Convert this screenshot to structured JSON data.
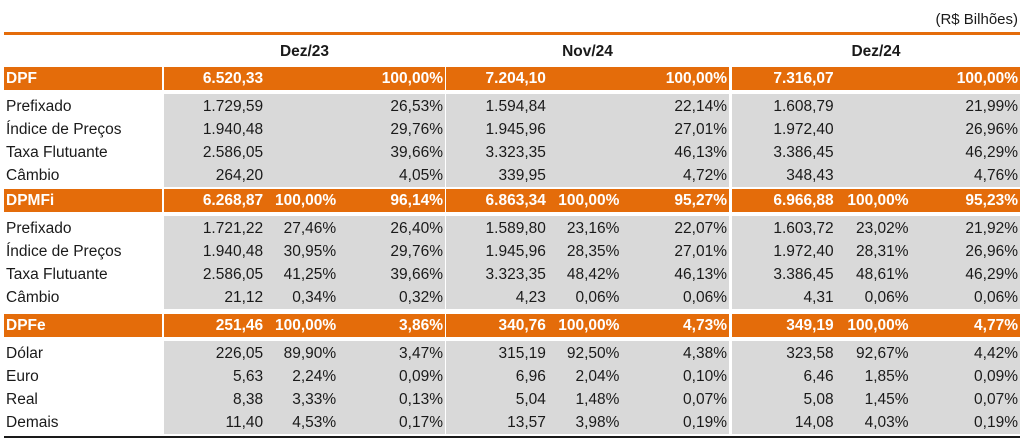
{
  "unit": "(R$ Bilhões)",
  "periods": [
    "Dez/23",
    "Nov/24",
    "Dez/24"
  ],
  "sections": [
    {
      "name": "DPF",
      "totals": [
        [
          "6.520,33",
          "",
          "100,00%"
        ],
        [
          "7.204,10",
          "",
          "100,00%"
        ],
        [
          "7.316,07",
          "",
          "100,00%"
        ]
      ],
      "rows": [
        {
          "label": "Prefixado",
          "vals": [
            [
              "1.729,59",
              "",
              "26,53%"
            ],
            [
              "1.594,84",
              "",
              "22,14%"
            ],
            [
              "1.608,79",
              "",
              "21,99%"
            ]
          ]
        },
        {
          "label": "Índice de Preços",
          "vals": [
            [
              "1.940,48",
              "",
              "29,76%"
            ],
            [
              "1.945,96",
              "",
              "27,01%"
            ],
            [
              "1.972,40",
              "",
              "26,96%"
            ]
          ]
        },
        {
          "label": "Taxa Flutuante",
          "vals": [
            [
              "2.586,05",
              "",
              "39,66%"
            ],
            [
              "3.323,35",
              "",
              "46,13%"
            ],
            [
              "3.386,45",
              "",
              "46,29%"
            ]
          ]
        },
        {
          "label": "Câmbio",
          "vals": [
            [
              "264,20",
              "",
              "4,05%"
            ],
            [
              "339,95",
              "",
              "4,72%"
            ],
            [
              "348,43",
              "",
              "4,76%"
            ]
          ]
        }
      ]
    },
    {
      "name": "DPMFi",
      "totals": [
        [
          "6.268,87",
          "100,00%",
          "96,14%"
        ],
        [
          "6.863,34",
          "100,00%",
          "95,27%"
        ],
        [
          "6.966,88",
          "100,00%",
          "95,23%"
        ]
      ],
      "rows": [
        {
          "label": "Prefixado",
          "vals": [
            [
              "1.721,22",
              "27,46%",
              "26,40%"
            ],
            [
              "1.589,80",
              "23,16%",
              "22,07%"
            ],
            [
              "1.603,72",
              "23,02%",
              "21,92%"
            ]
          ]
        },
        {
          "label": "Índice de Preços",
          "vals": [
            [
              "1.940,48",
              "30,95%",
              "29,76%"
            ],
            [
              "1.945,96",
              "28,35%",
              "27,01%"
            ],
            [
              "1.972,40",
              "28,31%",
              "26,96%"
            ]
          ]
        },
        {
          "label": "Taxa Flutuante",
          "vals": [
            [
              "2.586,05",
              "41,25%",
              "39,66%"
            ],
            [
              "3.323,35",
              "48,42%",
              "46,13%"
            ],
            [
              "3.386,45",
              "48,61%",
              "46,29%"
            ]
          ]
        },
        {
          "label": "Câmbio",
          "vals": [
            [
              "21,12",
              "0,34%",
              "0,32%"
            ],
            [
              "4,23",
              "0,06%",
              "0,06%"
            ],
            [
              "4,31",
              "0,06%",
              "0,06%"
            ]
          ]
        }
      ]
    },
    {
      "name": "DPFe",
      "totals": [
        [
          "251,46",
          "100,00%",
          "3,86%"
        ],
        [
          "340,76",
          "100,00%",
          "4,73%"
        ],
        [
          "349,19",
          "100,00%",
          "4,77%"
        ]
      ],
      "rows": [
        {
          "label": "Dólar",
          "vals": [
            [
              "226,05",
              "89,90%",
              "3,47%"
            ],
            [
              "315,19",
              "92,50%",
              "4,38%"
            ],
            [
              "323,58",
              "92,67%",
              "4,42%"
            ]
          ]
        },
        {
          "label": "Euro",
          "vals": [
            [
              "5,63",
              "2,24%",
              "0,09%"
            ],
            [
              "6,96",
              "2,04%",
              "0,10%"
            ],
            [
              "6,46",
              "1,85%",
              "0,09%"
            ]
          ]
        },
        {
          "label": "Real",
          "vals": [
            [
              "8,38",
              "3,33%",
              "0,13%"
            ],
            [
              "5,04",
              "1,48%",
              "0,07%"
            ],
            [
              "5,08",
              "1,45%",
              "0,07%"
            ]
          ]
        },
        {
          "label": "Demais",
          "vals": [
            [
              "11,40",
              "4,53%",
              "0,17%"
            ],
            [
              "13,57",
              "3,98%",
              "0,19%"
            ],
            [
              "14,08",
              "4,03%",
              "0,19%"
            ]
          ]
        }
      ]
    }
  ]
}
